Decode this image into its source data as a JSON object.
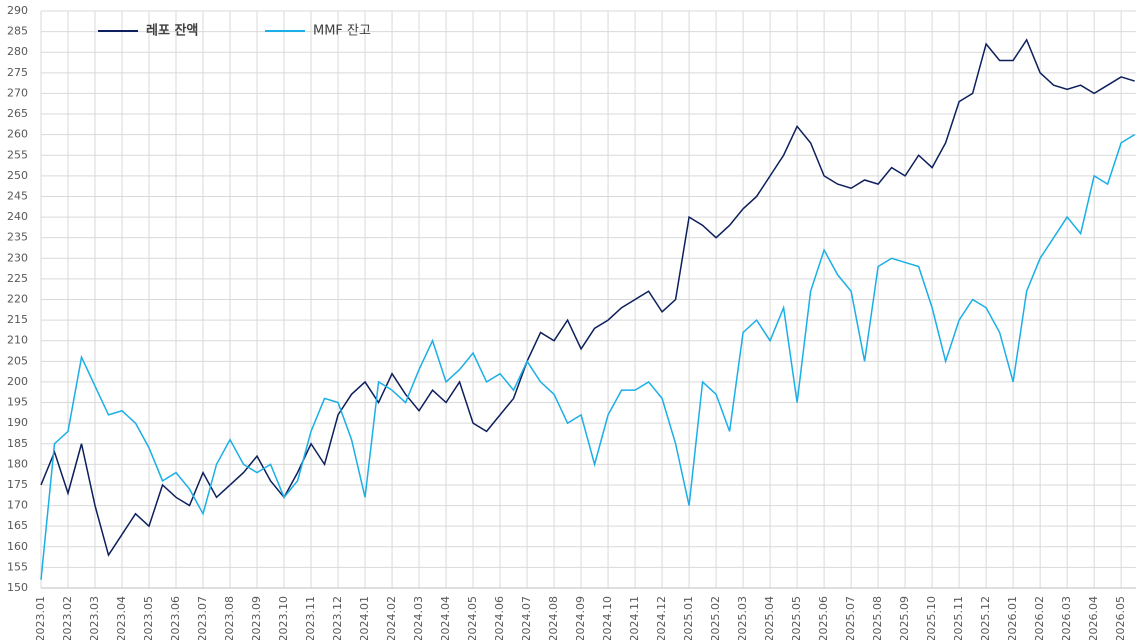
{
  "chart_data": {
    "type": "line",
    "x": [
      0,
      0.5,
      1,
      1.5,
      2,
      2.5,
      3,
      3.5,
      4,
      4.5,
      5,
      5.5,
      6,
      6.5,
      7,
      7.5,
      8,
      8.5,
      9,
      9.5,
      10,
      10.5,
      11,
      11.5,
      12,
      12.5,
      13,
      13.5,
      14,
      14.5,
      15,
      15.5,
      16,
      16.5,
      17,
      17.5,
      18,
      18.5,
      19,
      19.5,
      20,
      20.5,
      21,
      21.5,
      22,
      22.5,
      23,
      23.5,
      24,
      24.5,
      25,
      25.5,
      26,
      26.5,
      27,
      27.5,
      28,
      28.5,
      29,
      29.5,
      30,
      30.5,
      31,
      31.5,
      32,
      32.5,
      33,
      33.5,
      34,
      34.5,
      35,
      35.5,
      36,
      36.5,
      37,
      37.5,
      38,
      38.5,
      39,
      39.5,
      40,
      40.5
    ],
    "series": [
      {
        "name": "레포 잔액",
        "color": "#0d1f5c",
        "values": [
          175,
          183,
          173,
          185,
          170,
          158,
          163,
          168,
          165,
          175,
          172,
          170,
          178,
          172,
          175,
          178,
          182,
          176,
          172,
          178,
          185,
          180,
          192,
          197,
          200,
          195,
          202,
          197,
          193,
          198,
          195,
          200,
          190,
          188,
          192,
          196,
          205,
          212,
          210,
          215,
          208,
          213,
          215,
          218,
          220,
          222,
          217,
          220,
          240,
          238,
          235,
          238,
          242,
          245,
          250,
          255,
          262,
          258,
          250,
          248,
          247,
          249,
          248,
          252,
          250,
          255,
          252,
          258,
          268,
          270,
          282,
          278,
          278,
          283,
          275,
          272,
          271,
          272,
          270,
          272,
          274,
          273
        ]
      },
      {
        "name": "MMF 잔고",
        "color": "#1aafe6",
        "values": [
          152,
          185,
          188,
          206,
          199,
          192,
          193,
          190,
          184,
          176,
          178,
          174,
          168,
          180,
          186,
          180,
          178,
          180,
          172,
          176,
          188,
          196,
          195,
          186,
          172,
          200,
          198,
          195,
          203,
          210,
          200,
          203,
          207,
          200,
          202,
          198,
          205,
          200,
          197,
          190,
          192,
          180,
          192,
          198,
          198,
          200,
          196,
          185,
          170,
          200,
          197,
          188,
          212,
          215,
          210,
          218,
          195,
          222,
          232,
          226,
          222,
          205,
          228,
          230,
          229,
          228,
          218,
          205,
          215,
          220,
          218,
          212,
          200,
          222,
          230,
          235,
          240,
          236,
          250,
          248,
          258,
          260
        ]
      }
    ],
    "xlim": [
      0,
      40.55
    ],
    "xticks": [
      {
        "value": 0,
        "label": "2023.01"
      },
      {
        "value": 1,
        "label": "2023.02"
      },
      {
        "value": 2,
        "label": "2023.03"
      },
      {
        "value": 3,
        "label": "2023.04"
      },
      {
        "value": 4,
        "label": "2023.05"
      },
      {
        "value": 5,
        "label": "2023.06"
      },
      {
        "value": 6,
        "label": "2023.07"
      },
      {
        "value": 7,
        "label": "2023.08"
      },
      {
        "value": 8,
        "label": "2023.09"
      },
      {
        "value": 9,
        "label": "2023.10"
      },
      {
        "value": 10,
        "label": "2023.11"
      },
      {
        "value": 11,
        "label": "2023.12"
      },
      {
        "value": 12,
        "label": "2024.01"
      },
      {
        "value": 13,
        "label": "2024.02"
      },
      {
        "value": 14,
        "label": "2024.03"
      },
      {
        "value": 15,
        "label": "2024.04"
      },
      {
        "value": 16,
        "label": "2024.05"
      },
      {
        "value": 17,
        "label": "2024.06"
      },
      {
        "value": 18,
        "label": "2024.07"
      },
      {
        "value": 19,
        "label": "2024.08"
      },
      {
        "value": 20,
        "label": "2024.09"
      },
      {
        "value": 21,
        "label": "2024.10"
      },
      {
        "value": 22,
        "label": "2024.11"
      },
      {
        "value": 23,
        "label": "2024.12"
      },
      {
        "value": 24,
        "label": "2025.01"
      },
      {
        "value": 25,
        "label": "2025.02"
      },
      {
        "value": 26,
        "label": "2025.03"
      },
      {
        "value": 27,
        "label": "2025.04"
      },
      {
        "value": 28,
        "label": "2025.05"
      },
      {
        "value": 29,
        "label": "2025.06"
      },
      {
        "value": 30,
        "label": "2025.07"
      },
      {
        "value": 31,
        "label": "2025.08"
      },
      {
        "value": 32,
        "label": "2025.09"
      },
      {
        "value": 33,
        "label": "2025.10"
      },
      {
        "value": 34,
        "label": "2025.11"
      },
      {
        "value": 35,
        "label": "2025.12"
      },
      {
        "value": 36,
        "label": "2026.01"
      },
      {
        "value": 37,
        "label": "2026.02"
      },
      {
        "value": 38,
        "label": "2026.03"
      },
      {
        "value": 39,
        "label": "2026.04"
      },
      {
        "value": 40,
        "label": "2026.05"
      }
    ],
    "ylim": [
      150,
      290
    ],
    "yticks": [
      150,
      155,
      160,
      165,
      170,
      175,
      180,
      185,
      190,
      195,
      200,
      205,
      210,
      215,
      220,
      225,
      230,
      235,
      240,
      245,
      250,
      255,
      260,
      265,
      270,
      275,
      280,
      285,
      290
    ],
    "grid": true
  }
}
